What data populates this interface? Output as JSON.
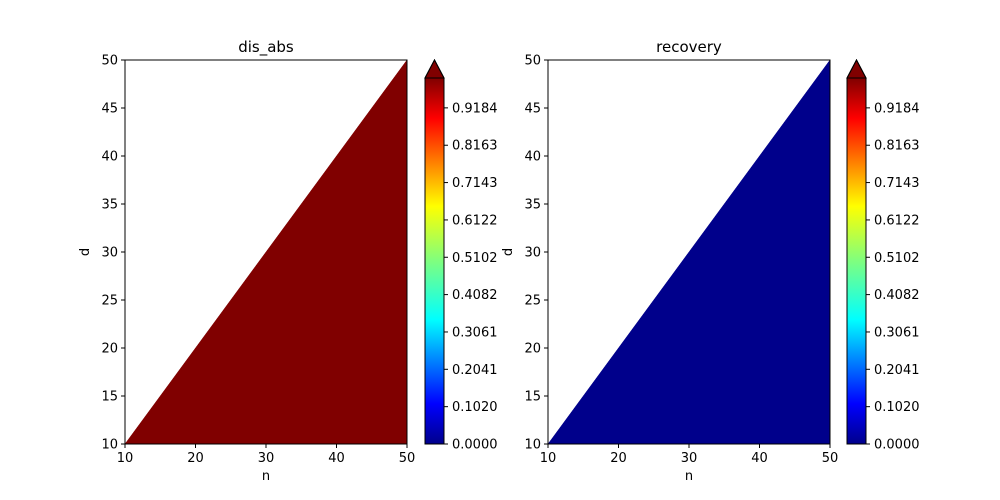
{
  "chart_data": [
    {
      "type": "contourf",
      "title": "dis_abs",
      "xlabel": "n",
      "ylabel": "d",
      "xlim": [
        10,
        50
      ],
      "ylim": [
        10,
        50
      ],
      "xticks": [
        "10",
        "20",
        "30",
        "40",
        "50"
      ],
      "yticks": [
        "10",
        "15",
        "20",
        "25",
        "30",
        "35",
        "40",
        "45",
        "50"
      ],
      "region": "n >= d",
      "value": 1.0,
      "fill_color": "#800000",
      "colorbar": {
        "colormap": "jet",
        "extend": "max",
        "min": 0.0,
        "max": 1.0,
        "ticks": [
          "0.0000",
          "0.1020",
          "0.2041",
          "0.3061",
          "0.4082",
          "0.5102",
          "0.6122",
          "0.7143",
          "0.8163",
          "0.9184"
        ]
      }
    },
    {
      "type": "contourf",
      "title": "recovery",
      "xlabel": "n",
      "ylabel": "d",
      "xlim": [
        10,
        50
      ],
      "ylim": [
        10,
        50
      ],
      "xticks": [
        "10",
        "20",
        "30",
        "40",
        "50"
      ],
      "yticks": [
        "10",
        "15",
        "20",
        "25",
        "30",
        "35",
        "40",
        "45",
        "50"
      ],
      "region": "n >= d",
      "value": 0.0,
      "fill_color": "#00008b",
      "colorbar": {
        "colormap": "jet",
        "extend": "max",
        "min": 0.0,
        "max": 1.0,
        "ticks": [
          "0.0000",
          "0.1020",
          "0.2041",
          "0.3061",
          "0.4082",
          "0.5102",
          "0.6122",
          "0.7143",
          "0.8163",
          "0.9184"
        ]
      }
    }
  ]
}
